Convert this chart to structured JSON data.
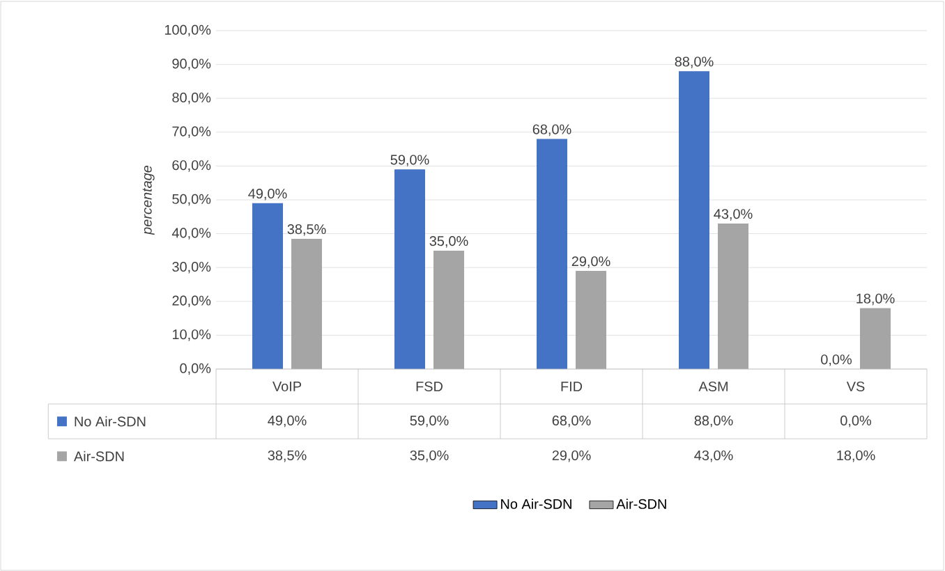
{
  "chart_data": {
    "type": "bar",
    "ylabel": "*percentage*",
    "categories": [
      "VoIP",
      "FSD",
      "FID",
      "ASM",
      "VS"
    ],
    "series": [
      {
        "name": "No Air-SDN",
        "color": "#4472c4",
        "values": [
          49.0,
          59.0,
          68.0,
          88.0,
          0.0
        ],
        "value_labels": [
          "49,0%",
          "59,0%",
          "68,0%",
          "88,0%",
          "0,0%"
        ]
      },
      {
        "name": "Air-SDN",
        "color": "#a5a5a5",
        "values": [
          38.5,
          35.0,
          29.0,
          43.0,
          18.0
        ],
        "value_labels": [
          "38,5%",
          "35,0%",
          "29,0%",
          "43,0%",
          "18,0%"
        ]
      }
    ],
    "ylim": [
      0,
      100
    ],
    "yticks": [
      {
        "value": 0,
        "label": "0,0%"
      },
      {
        "value": 10,
        "label": "10,0%"
      },
      {
        "value": 20,
        "label": "20,0%"
      },
      {
        "value": 30,
        "label": "30,0%"
      },
      {
        "value": 40,
        "label": "40,0%"
      },
      {
        "value": 50,
        "label": "50,0%"
      },
      {
        "value": 60,
        "label": "60,0%"
      },
      {
        "value": 70,
        "label": "70,0%"
      },
      {
        "value": 80,
        "label": "80,0%"
      },
      {
        "value": 90,
        "label": "90,0%"
      },
      {
        "value": 100,
        "label": "100,0%"
      }
    ],
    "grid": "y",
    "legend": "bottom"
  }
}
